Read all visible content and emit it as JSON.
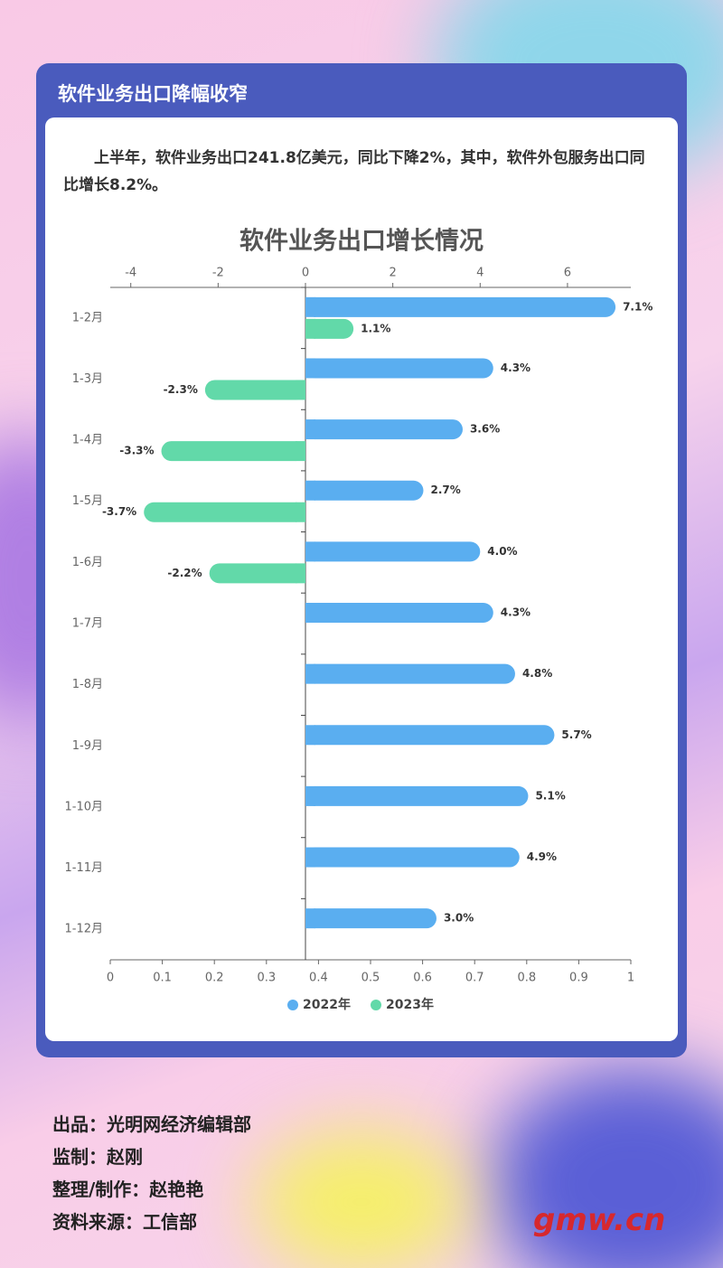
{
  "header": {
    "title": "软件业务出口降幅收窄",
    "paragraph": "上半年，软件业务出口241.8亿美元，同比下降2%，其中，软件外包服务出口同比增长8.2%。"
  },
  "chart_data": {
    "type": "bar",
    "orientation": "horizontal",
    "title": "软件业务出口增长情况",
    "categories": [
      "1-2月",
      "1-3月",
      "1-4月",
      "1-5月",
      "1-6月",
      "1-7月",
      "1-8月",
      "1-9月",
      "1-10月",
      "1-11月",
      "1-12月"
    ],
    "series": [
      {
        "name": "2022年",
        "color": "#5aaef0",
        "values": [
          7.1,
          4.3,
          3.6,
          2.7,
          4.0,
          4.3,
          4.8,
          5.7,
          5.1,
          4.9,
          3.0
        ],
        "value_labels": [
          "7.1%",
          "4.3%",
          "3.6%",
          "2.7%",
          "4.0%",
          "4.3%",
          "4.8%",
          "5.7%",
          "5.1%",
          "4.9%",
          "3.0%"
        ]
      },
      {
        "name": "2023年",
        "color": "#62d9a9",
        "values": [
          1.1,
          -2.3,
          -3.3,
          -3.7,
          -2.2,
          null,
          null,
          null,
          null,
          null,
          null
        ],
        "value_labels": [
          "1.1%",
          "-2.3%",
          "-3.3%",
          "-3.7%",
          "-2.2%",
          null,
          null,
          null,
          null,
          null,
          null
        ]
      }
    ],
    "xlim": [
      -4.47,
      7.45
    ],
    "xticks": [
      -4,
      -2,
      0,
      2,
      4,
      6
    ],
    "x2lim": [
      0,
      1
    ],
    "x2ticks": [
      0,
      0.1,
      0.2,
      0.3,
      0.4,
      0.5,
      0.6,
      0.7,
      0.8,
      0.9,
      1
    ],
    "legend": "bottom"
  },
  "footer": {
    "lines": [
      "出品：光明网经济编辑部",
      "监制：赵刚",
      "整理/制作：赵艳艳",
      "资料来源：工信部"
    ],
    "logo": "gmw.cn"
  }
}
